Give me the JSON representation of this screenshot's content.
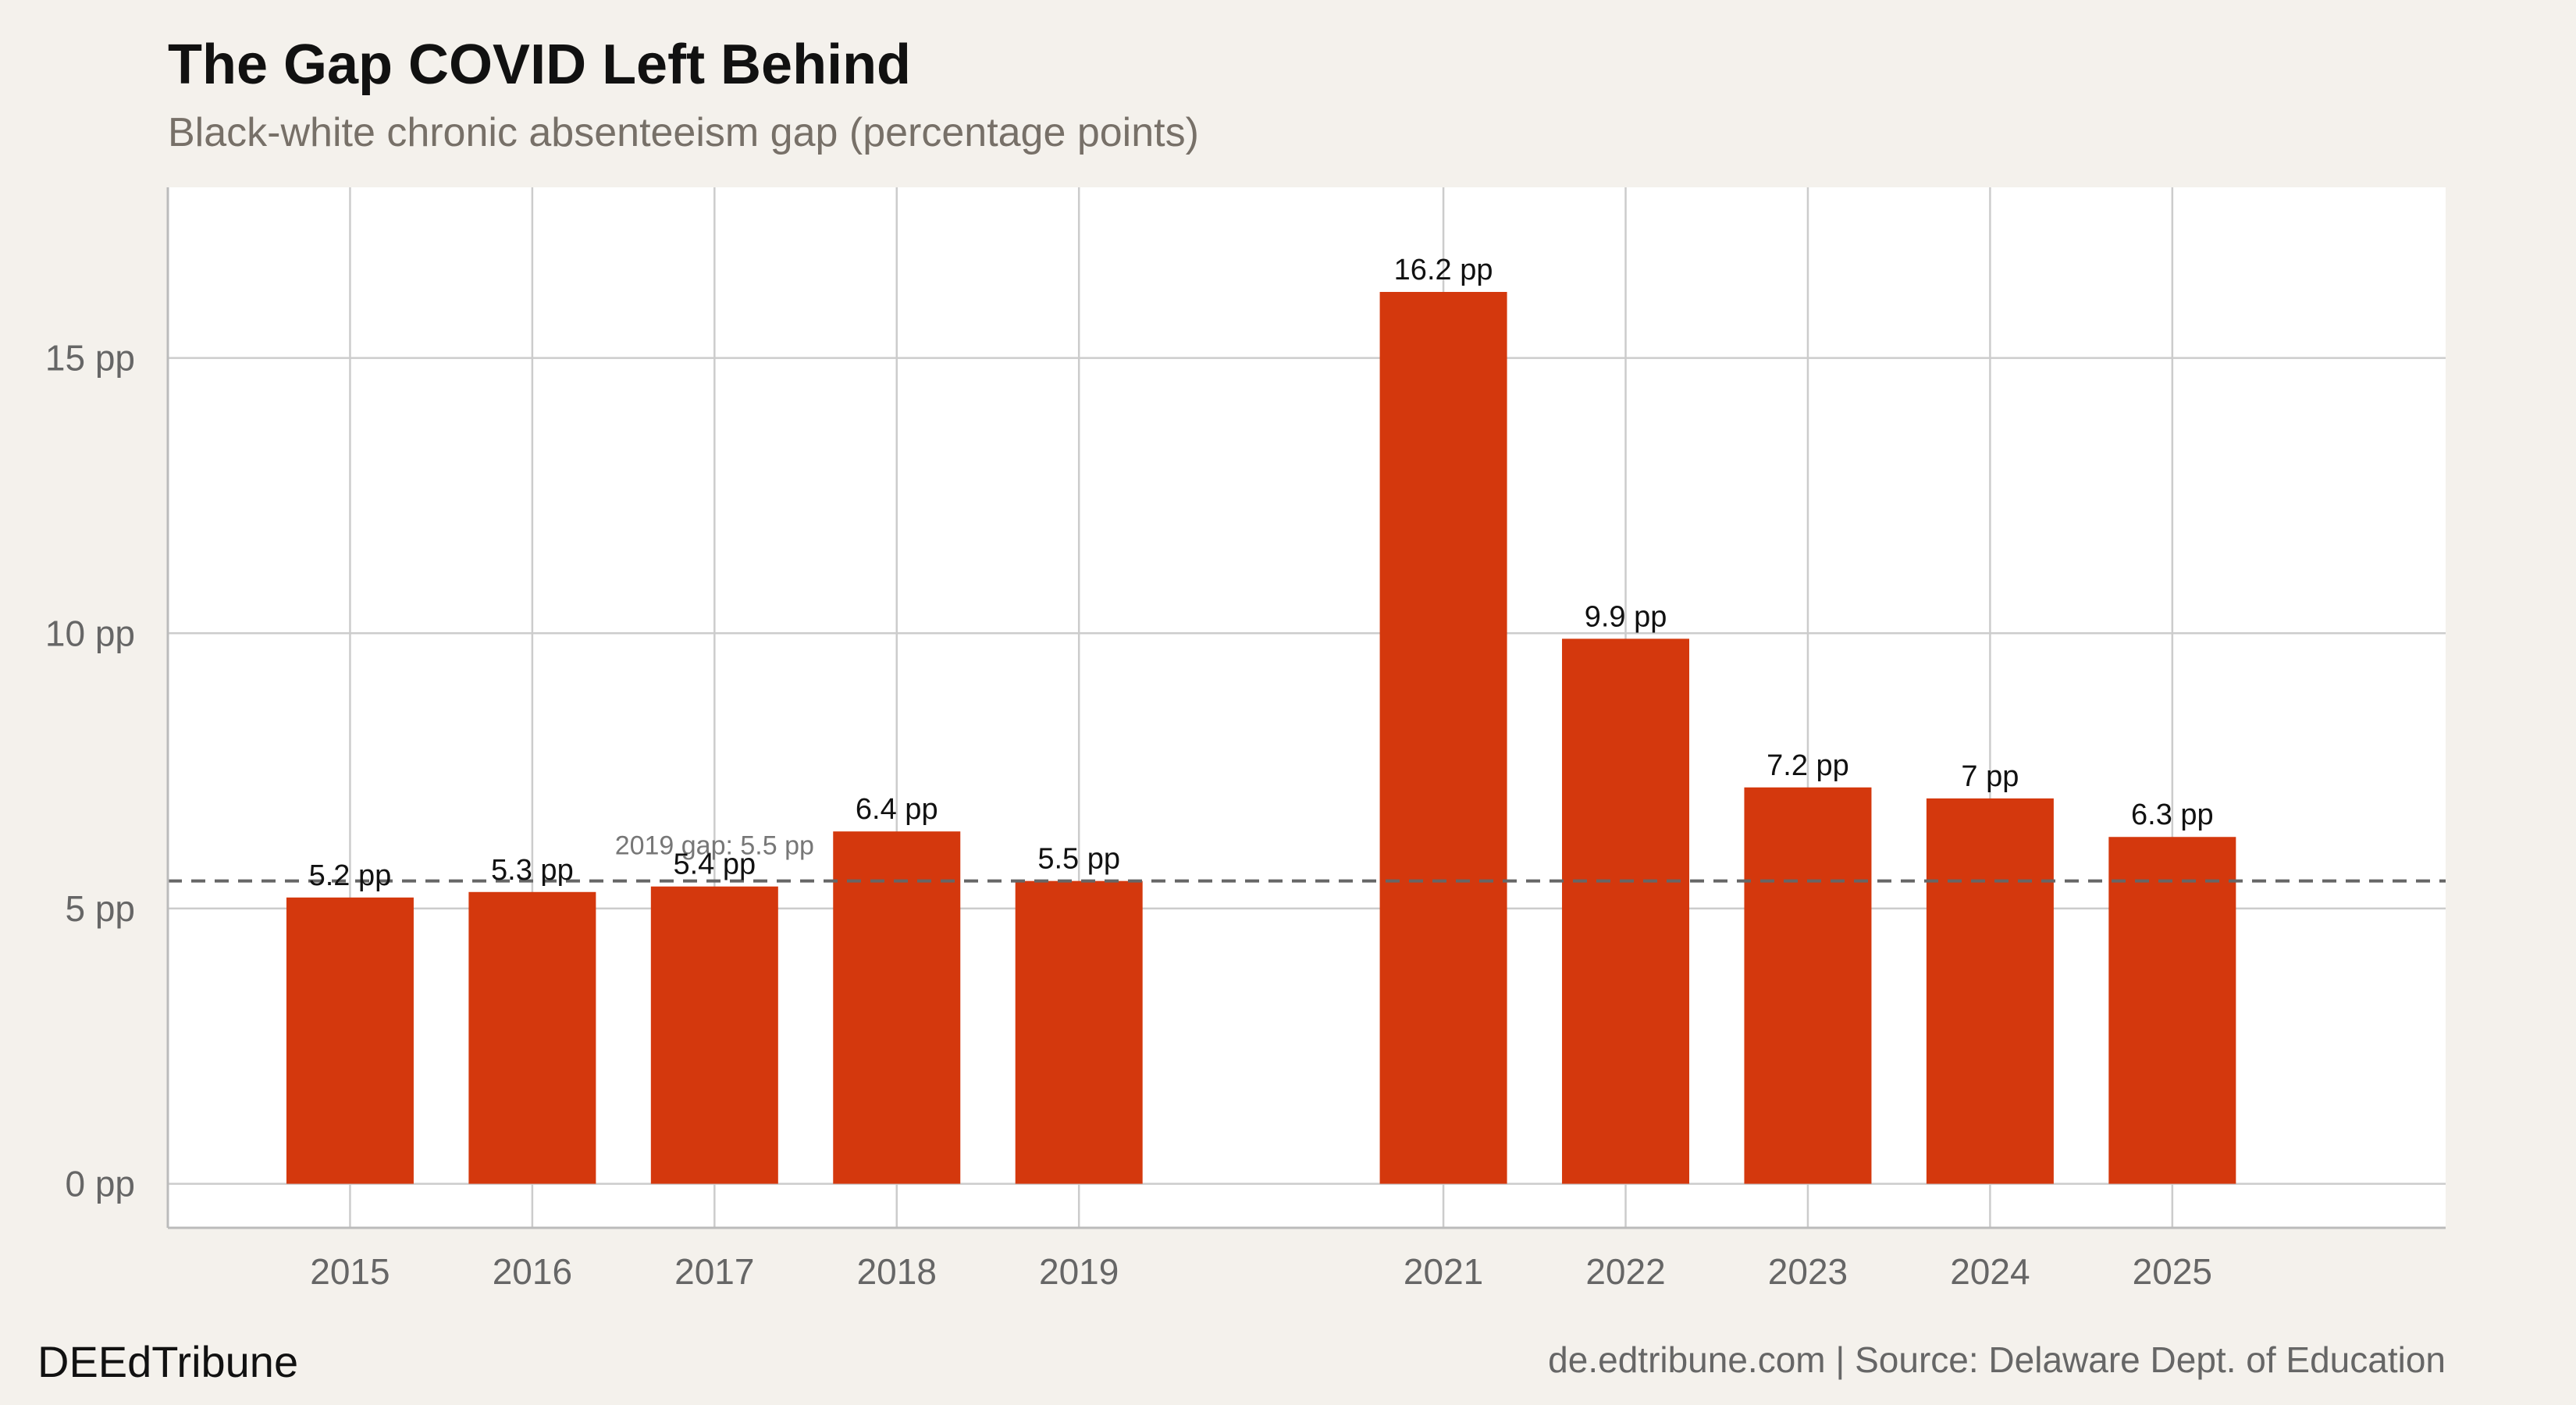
{
  "header": {
    "title": "The Gap COVID Left Behind",
    "subtitle": "Black-white chronic absenteeism gap (percentage points)"
  },
  "footer": {
    "brand": "DEEdTribune",
    "source": "de.edtribune.com | Source: Delaware Dept. of Education"
  },
  "colors": {
    "bar": "#d4380d",
    "grid": "#cccccc",
    "panel": "#ffffff",
    "reference_line": "#666666"
  },
  "chart_data": {
    "type": "bar",
    "title": "The Gap COVID Left Behind",
    "subtitle": "Black-white chronic absenteeism gap (percentage points)",
    "categories": [
      "2015",
      "2016",
      "2017",
      "2018",
      "2019",
      "2021",
      "2022",
      "2023",
      "2024",
      "2025"
    ],
    "x": [
      2015,
      2016,
      2017,
      2018,
      2019,
      2021,
      2022,
      2023,
      2024,
      2025
    ],
    "values": [
      5.2,
      5.3,
      5.4,
      6.4,
      5.5,
      16.2,
      9.9,
      7.2,
      7,
      6.3
    ],
    "data_labels": [
      "5.2 pp",
      "5.3 pp",
      "5.4 pp",
      "6.4 pp",
      "5.5 pp",
      "16.2 pp",
      "9.9 pp",
      "7.2 pp",
      "7 pp",
      "6.3 pp"
    ],
    "xlim": [
      2014,
      2026.5
    ],
    "ylim": [
      -0.8,
      18.1
    ],
    "yticks": [
      0,
      5,
      10,
      15
    ],
    "ytick_labels": [
      "0 pp",
      "5 pp",
      "10 pp",
      "15 pp"
    ],
    "reference_line": {
      "value": 5.5,
      "label": "2019 gap: 5.5 pp",
      "style": "dashed",
      "label_x": 2017
    },
    "grid": true,
    "legend": "none"
  }
}
